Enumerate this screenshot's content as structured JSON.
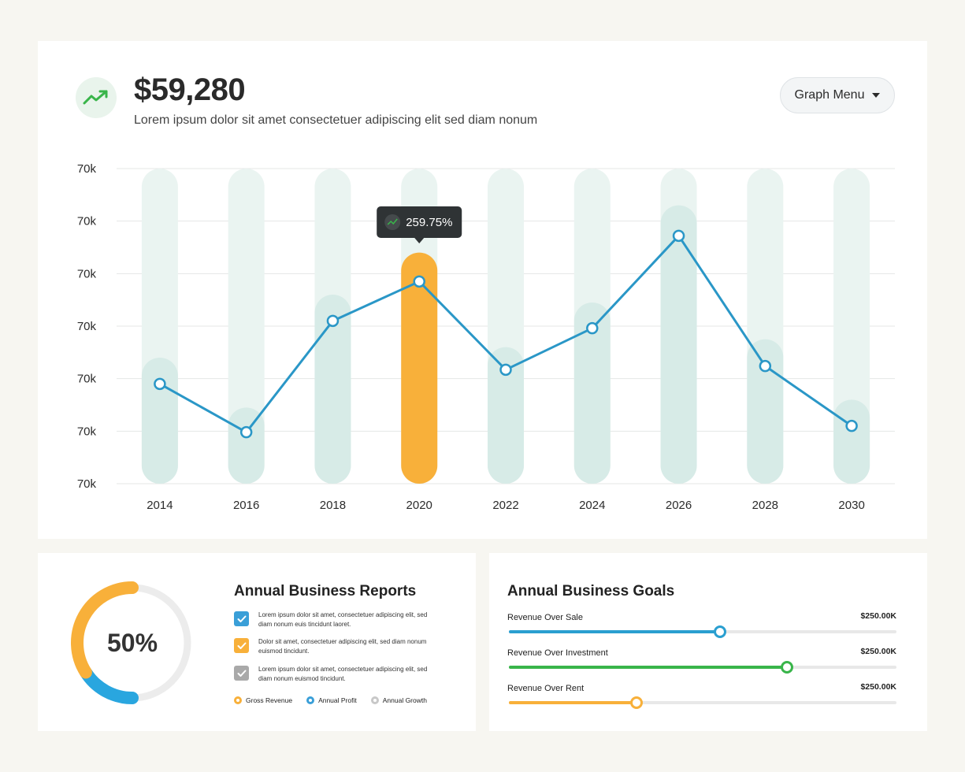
{
  "header": {
    "amount": "$59,280",
    "subtitle": "Lorem ipsum dolor sit amet consectetuer adipiscing elit sed diam nonum",
    "trend_icon": "trending-up-icon",
    "graph_menu_label": "Graph Menu"
  },
  "colors": {
    "accent_green": "#39b54a",
    "line_blue": "#2a97c7",
    "highlight_orange": "#f8b03a",
    "bar_light": "#d7ebe7",
    "bar_bg": "#eaf4f1",
    "tooltip_bg": "#2f3335"
  },
  "chart_data": {
    "type": "bar",
    "title": "",
    "xlabel": "",
    "ylabel": "",
    "categories": [
      "2014",
      "2016",
      "2018",
      "2020",
      "2022",
      "2024",
      "2026",
      "2028",
      "2030"
    ],
    "y_tick_labels": [
      "70k",
      "70k",
      "70k",
      "70k",
      "70k",
      "70k",
      "70k"
    ],
    "ylim": [
      0,
      6
    ],
    "grid": true,
    "series": [
      {
        "type": "bar",
        "values": [
          2.4,
          1.45,
          3.6,
          4.4,
          2.6,
          3.45,
          5.3,
          2.75,
          1.6
        ],
        "highlight_index": 3
      },
      {
        "type": "line",
        "values": [
          1.9,
          0.98,
          3.1,
          3.85,
          2.17,
          2.96,
          4.72,
          2.24,
          1.1
        ]
      }
    ],
    "tooltip": {
      "category": "2020",
      "text": "259.75%",
      "icon": "trending-up-icon"
    }
  },
  "reports": {
    "title": "Annual Business Reports",
    "donut_percent": 50,
    "donut_label": "50%",
    "items": [
      {
        "text": "Lorem ipsum dolor sit amet, consectetuer adipiscing elit, sed diam nonum euis tincidunt laoret.",
        "color": "#3a9fd8",
        "checked": true
      },
      {
        "text": "Dolor sit amet, consectetuer adipiscing elit, sed diam nonum euismod tincidunt.",
        "color": "#f8b03a",
        "checked": true
      },
      {
        "text": "Lorem ipsum dolor sit amet, consectetuer adipiscing elit, sed diam nonum euismod tincidunt.",
        "color": "#a9a9a9",
        "checked": true
      }
    ],
    "legend": [
      {
        "label": "Gross Revenue",
        "color": "#f8b03a"
      },
      {
        "label": "Annual Profit",
        "color": "#3a9fd8"
      },
      {
        "label": "Annual Growth",
        "color": "#c8c8c8"
      }
    ]
  },
  "goals": {
    "title": "Annual Business Goals",
    "items": [
      {
        "label": "Revenue Over Sale",
        "value": "$250.00K",
        "progress": 0.545,
        "color": "#2a9fd0"
      },
      {
        "label": "Revenue Over Investment",
        "value": "$250.00K",
        "progress": 0.718,
        "color": "#39b54a"
      },
      {
        "label": "Revenue Over Rent",
        "value": "$250.00K",
        "progress": 0.33,
        "color": "#f8b03a"
      }
    ]
  }
}
